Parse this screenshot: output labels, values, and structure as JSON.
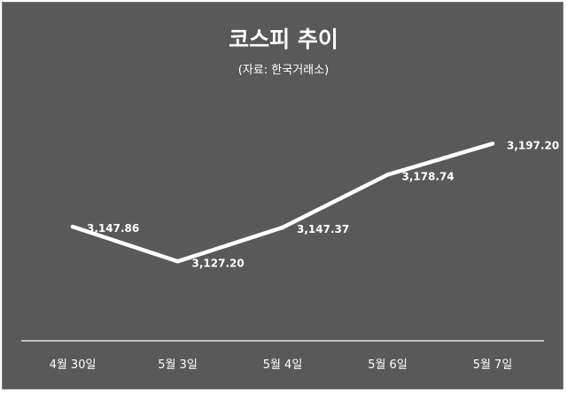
{
  "chart_data": {
    "type": "line",
    "title": "코스피 추이",
    "subtitle": "(자료: 한국거래소)",
    "categories": [
      "4월 30일",
      "5월 3일",
      "5월 4일",
      "5월 6일",
      "5월 7일"
    ],
    "values": [
      3147.86,
      3127.2,
      3147.37,
      3178.74,
      3197.2
    ],
    "data_labels": [
      "3,147.86",
      "3,127.20",
      "3,147.37",
      "3,178.74",
      "3,197.20"
    ],
    "xlabel": "",
    "ylabel": "",
    "ylim": [
      3080,
      3230
    ],
    "grid": false,
    "legend": "none",
    "colors": {
      "background": "#595959",
      "line": "#ffffff",
      "text": "#ffffff",
      "axis": "#ffffff"
    }
  }
}
